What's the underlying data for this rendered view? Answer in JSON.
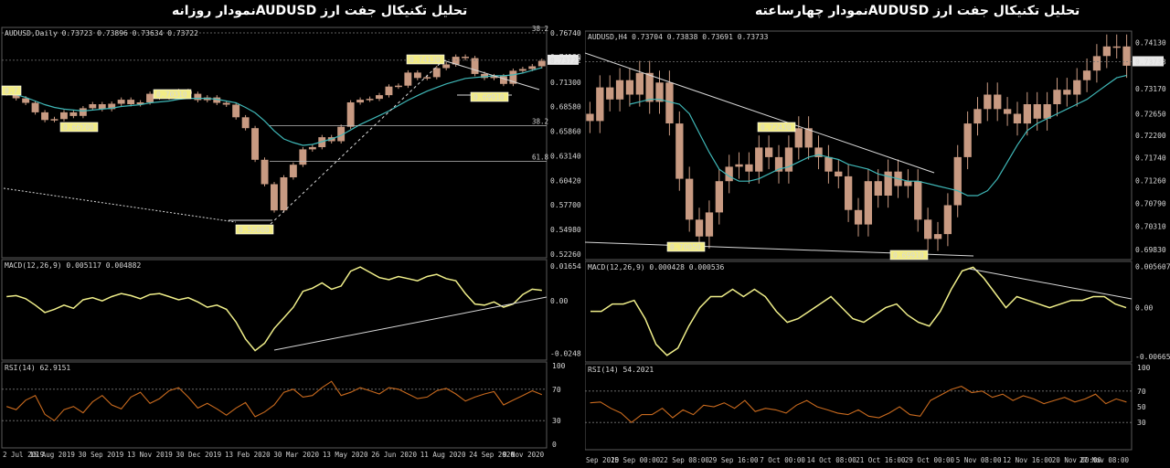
{
  "titles": {
    "left": "تحلیل تکنیکال جفت ارز  AUDUSDنمودار روزانه",
    "right": "تحلیل تکنیکال جفت ارز  AUDUSDنمودار چهارساعته"
  },
  "colors": {
    "background": "#000000",
    "candle": "#c89a82",
    "moving_average": "#3fb7b7",
    "macd": "#f0ef8a",
    "rsi": "#c96a1e",
    "trendline": "#d8d8d8",
    "label_fill": "#f2ec86",
    "grid_dotted": "#777777"
  },
  "chart_data": [
    {
      "type": "line",
      "panel": "price",
      "chart_side": "left",
      "header": "AUDUSD,Daily  0.73723 0.73896 0.73634 0.73722",
      "y_ticks": [
        "0.76740",
        "0.74130",
        "0.73722",
        "0.71300",
        "0.68580",
        "0.65860",
        "0.63140",
        "0.60420",
        "0.57700",
        "0.54980",
        "0.52260"
      ],
      "ylim": [
        0.5185,
        0.7735
      ],
      "fib_labels": [
        {
          "text": "38.2",
          "y": 0.7674
        },
        {
          "text": "38.2",
          "y": 0.6648
        },
        {
          "text": "61.8",
          "y": 0.6253
        }
      ],
      "annotations": [
        {
          "text": "0.74130",
          "x": "Aug 2020",
          "y": 0.7413
        },
        {
          "text": "0.70310",
          "x": "Jan 2020",
          "y": 0.7031
        },
        {
          "text": "0.66700",
          "x": "Aug 2019",
          "y": 0.667
        },
        {
          "text": "0.69910",
          "x": "Oct 2020",
          "y": 0.6991
        },
        {
          "text": "0.55060",
          "x": "Mar 2020",
          "y": 0.5506
        },
        {
          "text": "0.7",
          "x": "Jul 2019",
          "y": 0.7
        }
      ],
      "x_labels": [
        "2 Jul 2019",
        "15 Aug 2019",
        "30 Sep 2019",
        "13 Nov 2019",
        "30 Dec 2019",
        "13 Feb 2020",
        "30 Mar 2020",
        "13 May 2020",
        "26 Jun 2020",
        "11 Aug 2020",
        "24 Sep 2020",
        "9 Nov 2020"
      ],
      "close_series": [
        0.7005,
        0.695,
        0.69,
        0.6795,
        0.671,
        0.672,
        0.6795,
        0.6755,
        0.684,
        0.6885,
        0.683,
        0.689,
        0.6935,
        0.6885,
        0.6905,
        0.7,
        0.696,
        0.702,
        0.703,
        0.7,
        0.693,
        0.696,
        0.69,
        0.688,
        0.674,
        0.662,
        0.627,
        0.6,
        0.571,
        0.6075,
        0.6215,
        0.6385,
        0.641,
        0.652,
        0.6475,
        0.6635,
        0.6905,
        0.6935,
        0.6945,
        0.6985,
        0.708,
        0.709,
        0.7235,
        0.7175,
        0.7185,
        0.7285,
        0.7325,
        0.741,
        0.7395,
        0.722,
        0.7175,
        0.7195,
        0.711,
        0.7255,
        0.7275,
        0.7305,
        0.7365
      ],
      "ma_series": [
        0.702,
        0.699,
        0.696,
        0.692,
        0.688,
        0.685,
        0.683,
        0.682,
        0.681,
        0.682,
        0.683,
        0.684,
        0.686,
        0.687,
        0.688,
        0.69,
        0.691,
        0.692,
        0.694,
        0.695,
        0.695,
        0.695,
        0.694,
        0.692,
        0.69,
        0.685,
        0.679,
        0.67,
        0.659,
        0.65,
        0.646,
        0.643,
        0.644,
        0.647,
        0.65,
        0.654,
        0.66,
        0.666,
        0.671,
        0.676,
        0.681,
        0.687,
        0.693,
        0.698,
        0.703,
        0.707,
        0.711,
        0.714,
        0.717,
        0.718,
        0.719,
        0.72,
        0.72,
        0.721,
        0.723,
        0.726,
        0.729
      ]
    },
    {
      "type": "line",
      "panel": "macd",
      "chart_side": "left",
      "header": "MACD(12,26,9) 0.005117 0.004882",
      "y_ticks": [
        "0.01654",
        "0.00",
        "-0.02486"
      ],
      "ylim": [
        -0.028,
        0.0195
      ],
      "values": [
        0.002,
        0.0025,
        0.001,
        -0.002,
        -0.0055,
        -0.004,
        -0.002,
        -0.0035,
        0.0005,
        0.0015,
        0.0,
        0.002,
        0.0035,
        0.0025,
        0.001,
        0.003,
        0.0035,
        0.002,
        0.0005,
        0.0015,
        -0.0005,
        -0.003,
        -0.002,
        -0.004,
        -0.01,
        -0.018,
        -0.0235,
        -0.02,
        -0.013,
        -0.008,
        -0.003,
        0.0045,
        0.006,
        0.0085,
        0.0055,
        0.007,
        0.014,
        0.016,
        0.0135,
        0.011,
        0.01,
        0.0115,
        0.0105,
        0.0095,
        0.0115,
        0.0125,
        0.0105,
        0.0095,
        0.0035,
        -0.0015,
        -0.002,
        -0.0005,
        -0.003,
        -0.0015,
        0.003,
        0.0055,
        0.005
      ]
    },
    {
      "type": "line",
      "panel": "rsi",
      "chart_side": "left",
      "header": "RSI(14) 62.9151",
      "y_ticks": [
        "100",
        "70",
        "30",
        "0"
      ],
      "ylim": [
        0,
        100
      ],
      "values": [
        48,
        44,
        56,
        62,
        38,
        30,
        44,
        48,
        40,
        54,
        62,
        50,
        45,
        60,
        66,
        52,
        58,
        68,
        72,
        60,
        46,
        52,
        45,
        37,
        46,
        53,
        35,
        41,
        50,
        66,
        70,
        60,
        62,
        72,
        80,
        62,
        66,
        72,
        68,
        64,
        72,
        70,
        64,
        58,
        60,
        68,
        71,
        64,
        55,
        60,
        64,
        67,
        50,
        56,
        62,
        68,
        63
      ]
    },
    {
      "type": "line",
      "panel": "price",
      "chart_side": "right",
      "header": "AUDUSD,H4  0.73704 0.73838 0.73691 0.73733",
      "y_ticks": [
        "0.74130",
        "0.73733",
        "0.73170",
        "0.72650",
        "0.72200",
        "0.71740",
        "0.71260",
        "0.70790",
        "0.70310",
        "0.69830"
      ],
      "ylim": [
        0.6962,
        0.7437
      ],
      "annotations": [
        {
          "text": "0.72430",
          "x": "7 Oct 2020",
          "y": 0.7243
        },
        {
          "text": "0.70050",
          "x": "22 Sep 2020",
          "y": 0.7005
        },
        {
          "text": "0.69910",
          "x": "2 Nov 2020",
          "y": 0.6991
        }
      ],
      "x_labels": [
        "Sep 2020",
        "15 Sep 00:00",
        "22 Sep 08:00",
        "29 Sep 16:00",
        "7 Oct 00:00",
        "14 Oct 08:00",
        "21 Oct 16:00",
        "29 Oct 00:00",
        "5 Nov 08:00",
        "12 Nov 16:00",
        "20 Nov 00:00",
        "27 Nov 08:00"
      ],
      "close_series": [
        0.725,
        0.732,
        0.7295,
        0.7335,
        0.7305,
        0.735,
        0.729,
        0.733,
        0.7245,
        0.713,
        0.7045,
        0.701,
        0.706,
        0.7125,
        0.7155,
        0.716,
        0.7145,
        0.7195,
        0.7175,
        0.7145,
        0.7195,
        0.7235,
        0.7195,
        0.7175,
        0.7145,
        0.7135,
        0.7065,
        0.7035,
        0.7125,
        0.7095,
        0.7145,
        0.7115,
        0.7125,
        0.7045,
        0.7005,
        0.7015,
        0.7075,
        0.7175,
        0.7245,
        0.7275,
        0.7305,
        0.7275,
        0.7265,
        0.7245,
        0.7285,
        0.7255,
        0.7285,
        0.7315,
        0.7305,
        0.7335,
        0.7355,
        0.7385,
        0.7405,
        0.7405,
        0.7365
      ],
      "ma_series": [
        0.7285,
        0.729,
        0.7295,
        0.7295,
        0.729,
        0.7285,
        0.7265,
        0.7225,
        0.7185,
        0.715,
        0.7135,
        0.7125,
        0.7125,
        0.713,
        0.714,
        0.715,
        0.7155,
        0.7165,
        0.7175,
        0.718,
        0.7175,
        0.717,
        0.716,
        0.7155,
        0.715,
        0.714,
        0.7135,
        0.713,
        0.7125,
        0.7125,
        0.712,
        0.7115,
        0.711,
        0.7105,
        0.7095,
        0.7095,
        0.7105,
        0.713,
        0.7165,
        0.72,
        0.723,
        0.7245,
        0.7255,
        0.7265,
        0.7275,
        0.7285,
        0.7295,
        0.731,
        0.7325,
        0.734,
        0.7345
      ],
      "ma_start_index": 4
    },
    {
      "type": "line",
      "panel": "macd",
      "chart_side": "right",
      "header": "MACD(12,26,9) 0.000428 0.000536",
      "y_ticks": [
        "0.005607",
        "0.00",
        "-0.006656"
      ],
      "ylim": [
        -0.0074,
        0.0063
      ],
      "values": [
        -0.0005,
        -0.0005,
        0.0005,
        0.0005,
        0.001,
        -0.0015,
        -0.005,
        -0.0065,
        -0.0055,
        -0.0025,
        0.0,
        0.0015,
        0.0015,
        0.0025,
        0.0015,
        0.0025,
        0.0015,
        -0.0005,
        -0.002,
        -0.0015,
        -0.0005,
        0.0005,
        0.0015,
        0.0,
        -0.0015,
        -0.002,
        -0.001,
        0.0,
        0.0005,
        -0.001,
        -0.002,
        -0.0025,
        -0.0005,
        0.0025,
        0.005,
        0.0055,
        0.004,
        0.002,
        0.0,
        0.0015,
        0.001,
        0.0005,
        0.0,
        0.0005,
        0.001,
        0.001,
        0.0015,
        0.0015,
        0.0005,
        0.0
      ]
    },
    {
      "type": "line",
      "panel": "rsi",
      "chart_side": "right",
      "header": "RSI(14) 54.2021",
      "y_ticks": [
        "100",
        "70",
        "50",
        "30"
      ],
      "ylim": [
        0,
        100
      ],
      "values": [
        55,
        56,
        48,
        42,
        30,
        40,
        40,
        48,
        36,
        46,
        40,
        52,
        50,
        55,
        48,
        58,
        44,
        48,
        46,
        42,
        52,
        58,
        50,
        46,
        42,
        40,
        46,
        38,
        36,
        42,
        50,
        40,
        38,
        58,
        65,
        72,
        76,
        68,
        70,
        62,
        66,
        58,
        64,
        60,
        54,
        58,
        62,
        56,
        60,
        66,
        54,
        60,
        56
      ]
    }
  ]
}
